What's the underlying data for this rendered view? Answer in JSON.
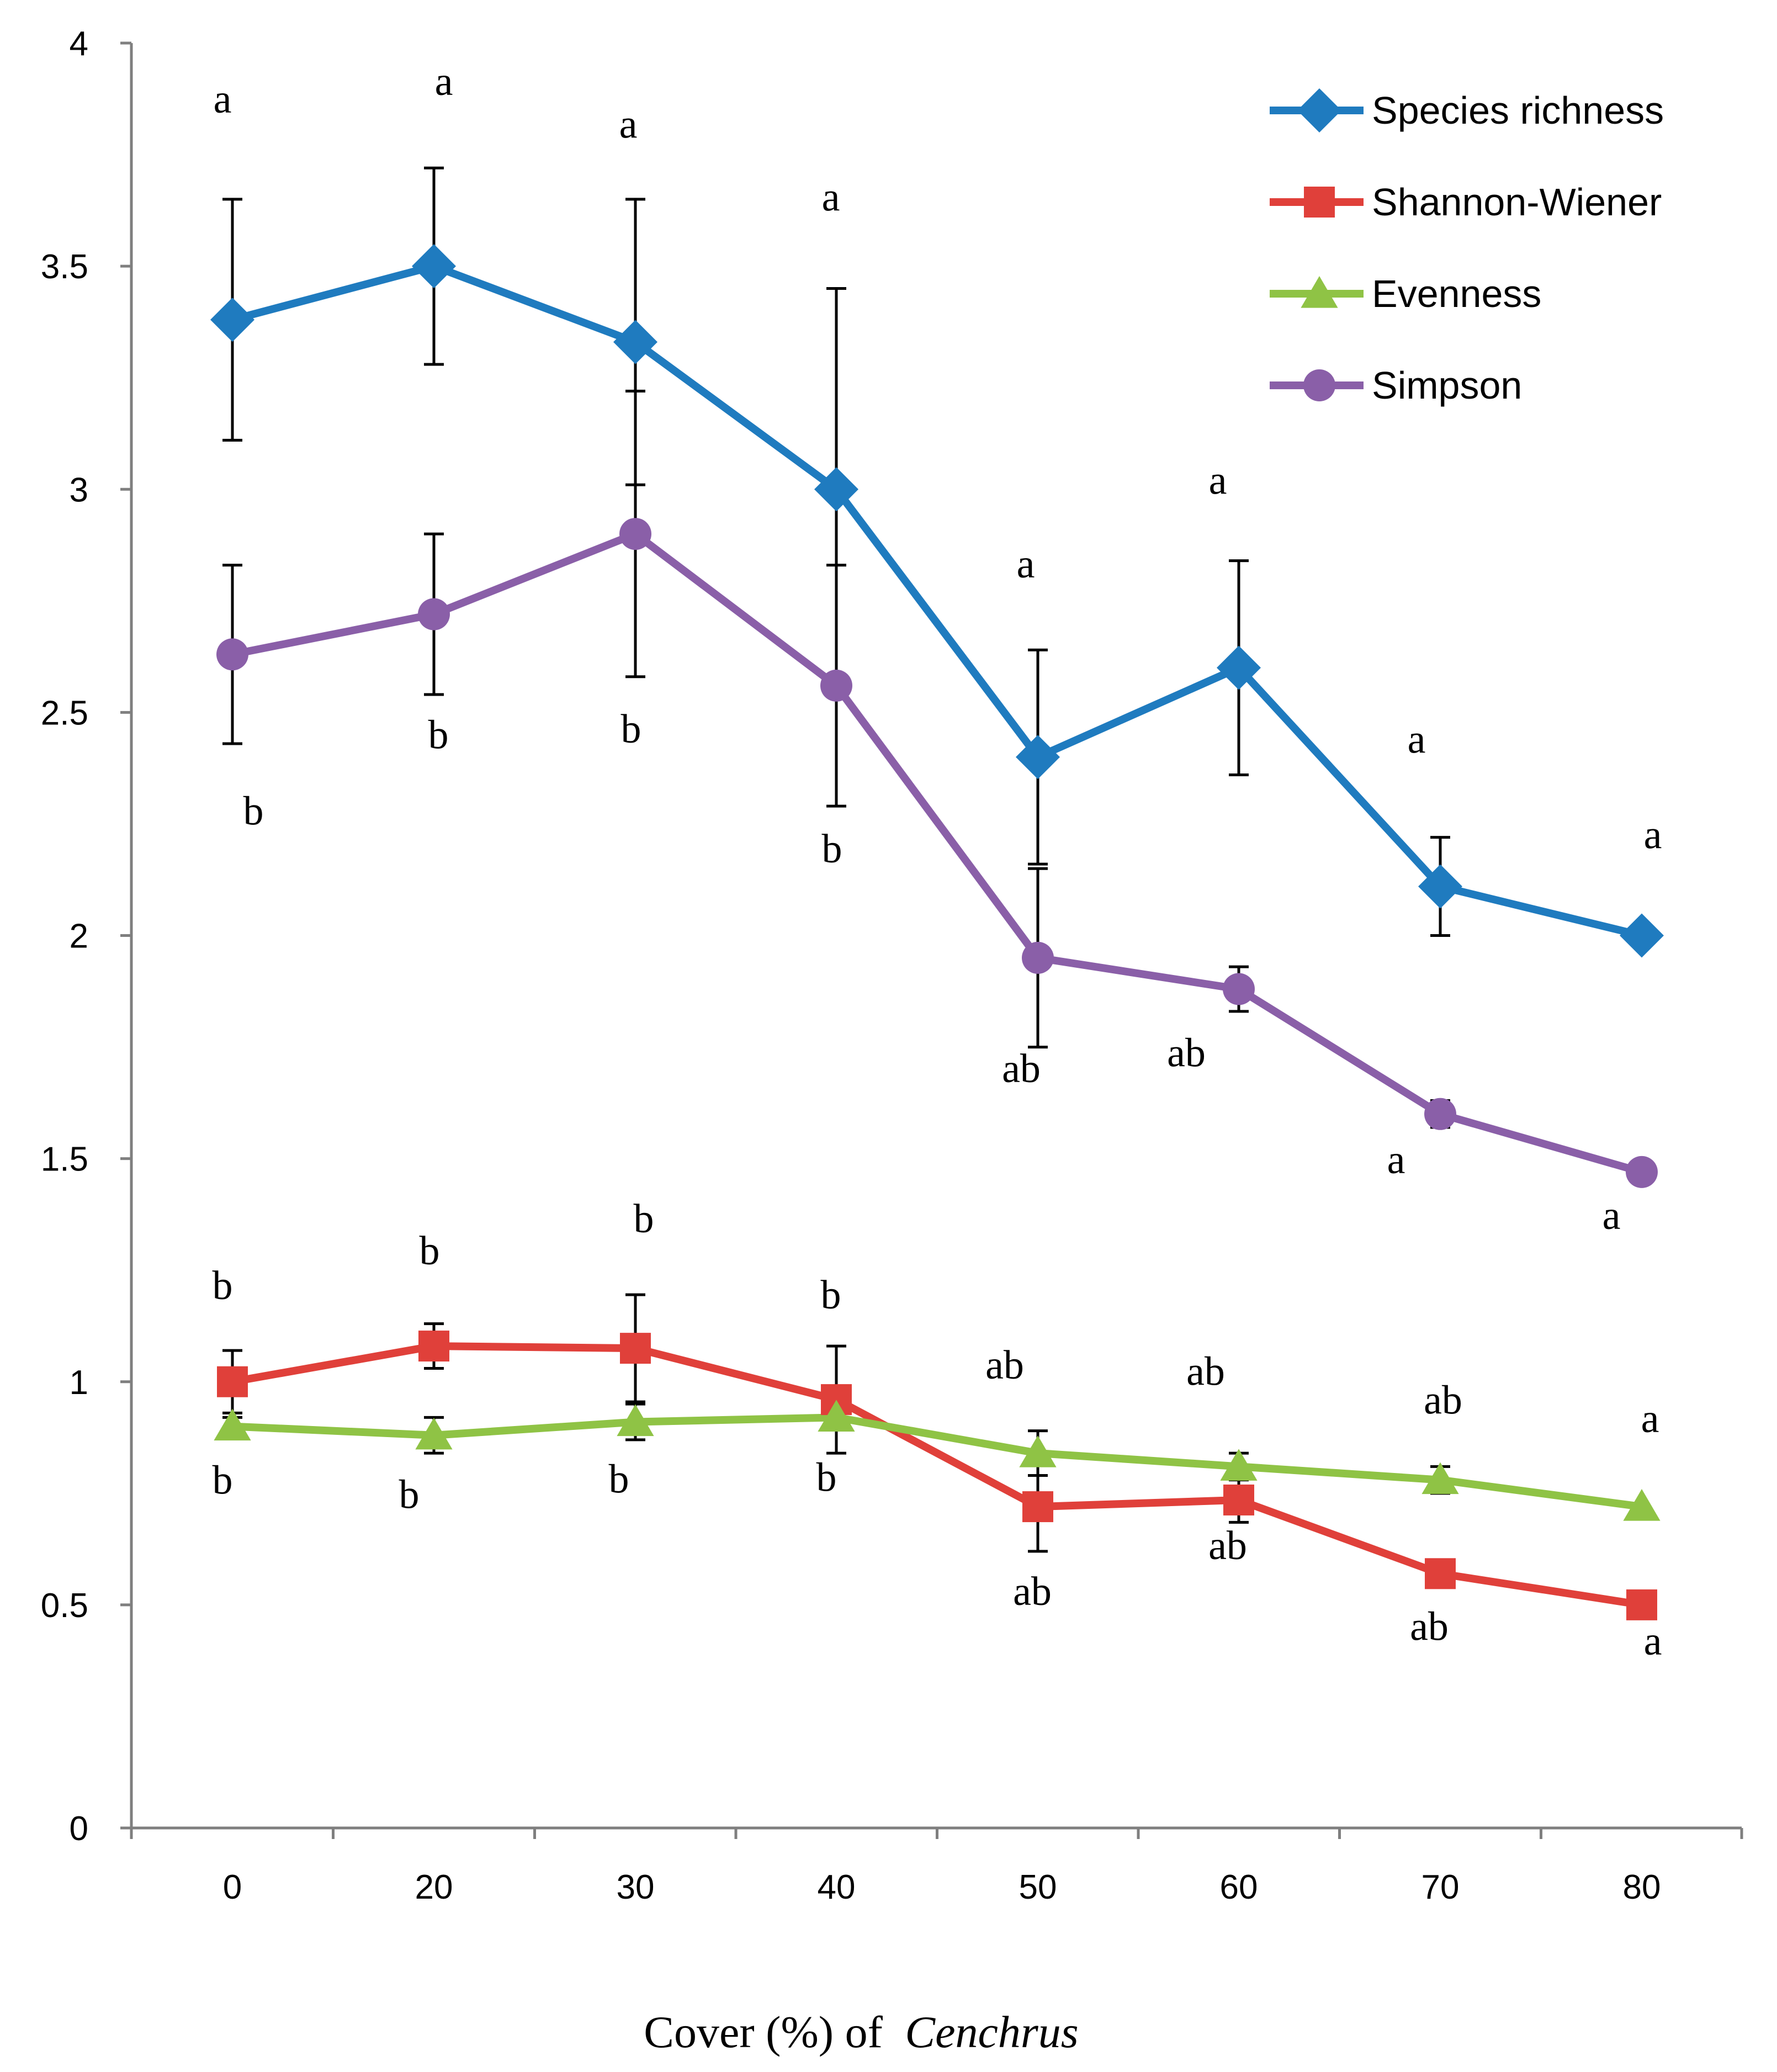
{
  "chart_data": {
    "type": "line",
    "title": "",
    "xlabel": "Cover (%) of",
    "xlabel_italic": "Cenchrus",
    "ylabel": "",
    "categories": [
      "0",
      "20",
      "30",
      "40",
      "50",
      "60",
      "70",
      "80"
    ],
    "ylim": [
      0,
      4
    ],
    "yticks": [
      "0",
      "0.5",
      "1",
      "1.5",
      "2",
      "2.5",
      "3",
      "3.5",
      "4"
    ],
    "legend_position": "top-right",
    "series": [
      {
        "name": "Species richness",
        "color": "#1f7bbf",
        "marker": "diamond",
        "values": [
          3.38,
          3.5,
          3.33,
          3.0,
          2.4,
          2.6,
          2.11,
          2.0
        ],
        "err_upper": [
          0.27,
          0.22,
          0.32,
          0.45,
          0.24,
          0.24,
          0.11,
          0
        ],
        "err_lower": [
          0.27,
          0.22,
          0.32,
          0.45,
          0.24,
          0.24,
          0.11,
          0
        ],
        "letters": [
          "a",
          "a",
          "a",
          "a",
          "a",
          "a",
          "a",
          "a"
        ]
      },
      {
        "name": "Shannon-Wiener",
        "color": "#e0403a",
        "marker": "square",
        "values": [
          1.0,
          1.08,
          1.075,
          0.96,
          0.72,
          0.735,
          0.57,
          0.5
        ],
        "err_upper": [
          0.07,
          0.05,
          0.12,
          0.12,
          0.1,
          0.05,
          0.03,
          0
        ],
        "err_lower": [
          0.07,
          0.05,
          0.12,
          0.12,
          0.1,
          0.05,
          0.03,
          0
        ],
        "letters": [
          "b",
          "b",
          "b",
          "b",
          "ab",
          "ab",
          "ab",
          "a"
        ]
      },
      {
        "name": "Evenness",
        "color": "#8fc345",
        "marker": "triangle",
        "values": [
          0.9,
          0.88,
          0.91,
          0.92,
          0.84,
          0.81,
          0.78,
          0.72
        ],
        "err_upper": [
          0.02,
          0.04,
          0.04,
          0.02,
          0.05,
          0.03,
          0.03,
          0
        ],
        "err_lower": [
          0.02,
          0.04,
          0.04,
          0.02,
          0.05,
          0.03,
          0.03,
          0
        ],
        "letters": [
          "b",
          "b",
          "b",
          "b",
          "ab",
          "ab",
          "ab",
          "a"
        ]
      },
      {
        "name": "Simpson",
        "color": "#8a5fa8",
        "marker": "circle",
        "values": [
          2.63,
          2.72,
          2.9,
          2.56,
          1.95,
          1.88,
          1.6,
          1.47
        ],
        "err_upper": [
          0.2,
          0.18,
          0.32,
          0.27,
          0.2,
          0.05,
          0.03,
          0
        ],
        "err_lower": [
          0.2,
          0.18,
          0.32,
          0.27,
          0.2,
          0.05,
          0.03,
          0
        ],
        "letters": [
          "b",
          "b",
          "b",
          "b",
          "ab",
          "ab",
          "a",
          "a"
        ]
      }
    ]
  }
}
